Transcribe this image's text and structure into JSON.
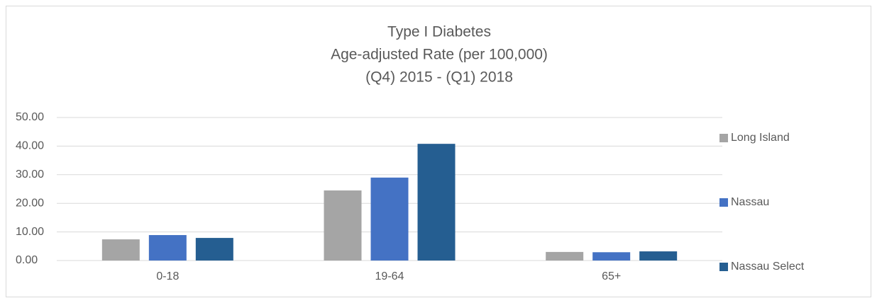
{
  "chart_data": {
    "type": "bar",
    "title": [
      "Type I Diabetes",
      "Age-adjusted Rate (per 100,000)",
      "(Q4) 2015 - (Q1) 2018"
    ],
    "categories": [
      "0-18",
      "19-64",
      "65+"
    ],
    "series": [
      {
        "name": "Long Island",
        "color": "#a5a5a5",
        "values": [
          7.4,
          24.5,
          3.0
        ]
      },
      {
        "name": "Nassau",
        "color": "#4472c4",
        "values": [
          8.9,
          29.0,
          2.9
        ]
      },
      {
        "name": "Nassau Select",
        "color": "#255e91",
        "values": [
          7.9,
          40.8,
          3.2
        ]
      }
    ],
    "ylim": [
      0,
      50
    ],
    "yticks": [
      {
        "value": 0,
        "label": "0.00"
      },
      {
        "value": 10,
        "label": "10.00"
      },
      {
        "value": 20,
        "label": "20.00"
      },
      {
        "value": 30,
        "label": "30.00"
      },
      {
        "value": 40,
        "label": "40.00"
      },
      {
        "value": 50,
        "label": "50.00"
      }
    ],
    "grid": true,
    "legend": "right"
  }
}
